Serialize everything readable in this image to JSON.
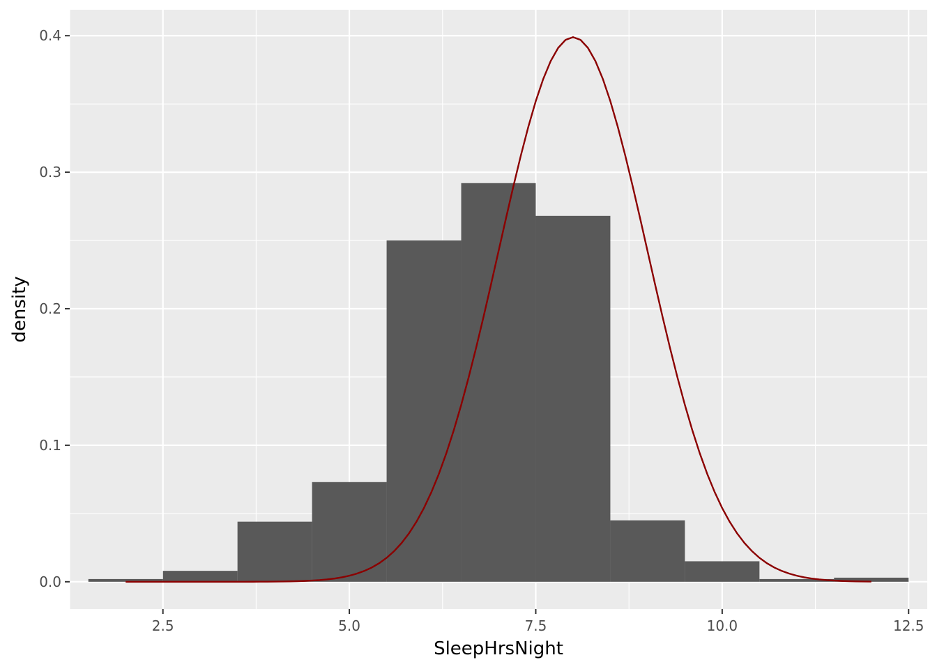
{
  "chart_data": {
    "type": "bar",
    "xlabel": "SleepHrsNight",
    "ylabel": "density",
    "xlim": [
      1.25,
      12.75
    ],
    "ylim": [
      -0.02,
      0.419
    ],
    "x_ticks": [
      2.5,
      5.0,
      7.5,
      10.0,
      12.5
    ],
    "x_tick_labels": [
      "2.5",
      "5.0",
      "7.5",
      "10.0",
      "12.5"
    ],
    "y_ticks": [
      0.0,
      0.1,
      0.2,
      0.3,
      0.4
    ],
    "y_tick_labels": [
      "0.0",
      "0.1",
      "0.2",
      "0.3",
      "0.4"
    ],
    "grid": true,
    "histogram": {
      "bin_edges": [
        1.5,
        2.5,
        3.5,
        4.5,
        5.5,
        6.5,
        7.5,
        8.5,
        9.5,
        10.5,
        11.5,
        12.5
      ],
      "density": [
        0.002,
        0.008,
        0.044,
        0.073,
        0.25,
        0.292,
        0.268,
        0.045,
        0.015,
        0.002,
        0.003
      ],
      "fill": "#595959"
    },
    "normal_curve": {
      "mean": 8,
      "sd": 1,
      "x_range": [
        2,
        12
      ],
      "color": "#8B0000"
    },
    "colors": {
      "panel": "#EBEBEB",
      "grid": "#FFFFFF",
      "tick_text": "#4D4D4D",
      "tick_mark": "#333333"
    }
  }
}
